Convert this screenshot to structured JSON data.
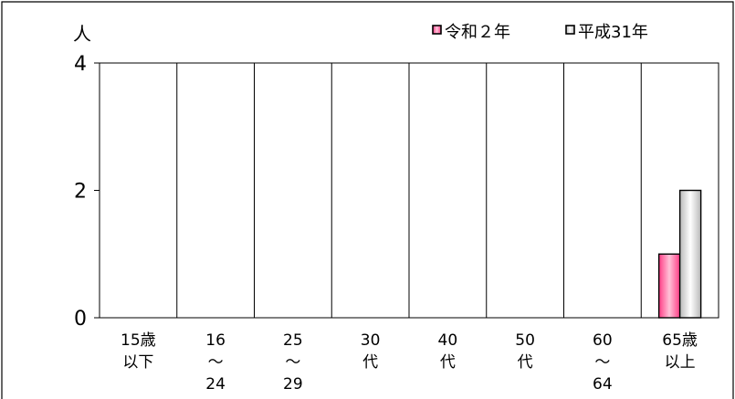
{
  "chart_data": {
    "type": "bar",
    "title": "",
    "xlabel": "",
    "ylabel": "人",
    "ylim": [
      0,
      4
    ],
    "yticks": [
      "0",
      "2",
      "4"
    ],
    "grid": false,
    "legend_position": "top-right",
    "categories": [
      [
        "15歳",
        "以下"
      ],
      [
        "16",
        "～",
        "24"
      ],
      [
        "25",
        "～",
        "29"
      ],
      [
        "30",
        "代"
      ],
      [
        "40",
        "代"
      ],
      [
        "50",
        "代"
      ],
      [
        "60",
        "～",
        "64"
      ],
      [
        "65歳",
        "以上"
      ]
    ],
    "series": [
      {
        "name": "令和２年",
        "values": [
          0,
          0,
          0,
          0,
          0,
          0,
          0,
          1
        ],
        "color": "#ff6fa0"
      },
      {
        "name": "平成31年",
        "values": [
          0,
          0,
          0,
          0,
          0,
          0,
          0,
          2
        ],
        "color": "#d9d9d9"
      }
    ]
  }
}
